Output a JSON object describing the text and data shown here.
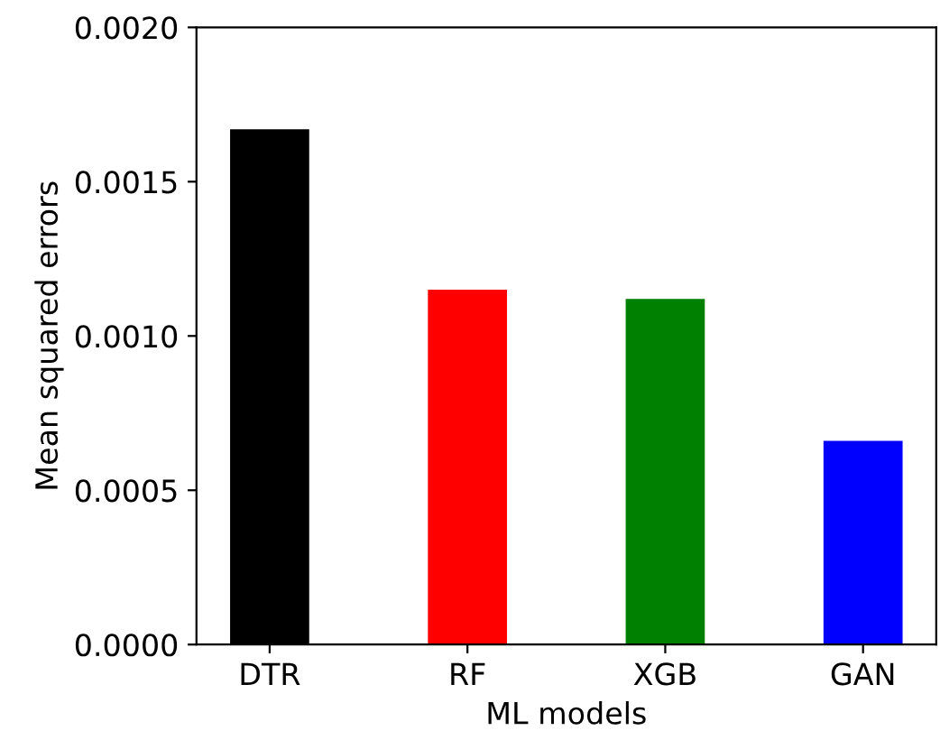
{
  "chart_data": {
    "type": "bar",
    "xlabel": "ML models",
    "ylabel": "Mean squared errors",
    "categories": [
      "DTR",
      "RF",
      "XGB",
      "GAN"
    ],
    "values": [
      0.00167,
      0.00115,
      0.00112,
      0.00066
    ],
    "colors": [
      "#000000",
      "#ff0000",
      "#008000",
      "#0000ff"
    ],
    "ylim": [
      0,
      0.002
    ],
    "yticks": [
      {
        "value": 0,
        "label": "0.0000"
      },
      {
        "value": 0.0005,
        "label": "0.0005"
      },
      {
        "value": 0.001,
        "label": "0.0010"
      },
      {
        "value": 0.0015,
        "label": "0.0015"
      },
      {
        "value": 0.002,
        "label": "0.0020"
      }
    ],
    "grid": false,
    "legend": false
  }
}
